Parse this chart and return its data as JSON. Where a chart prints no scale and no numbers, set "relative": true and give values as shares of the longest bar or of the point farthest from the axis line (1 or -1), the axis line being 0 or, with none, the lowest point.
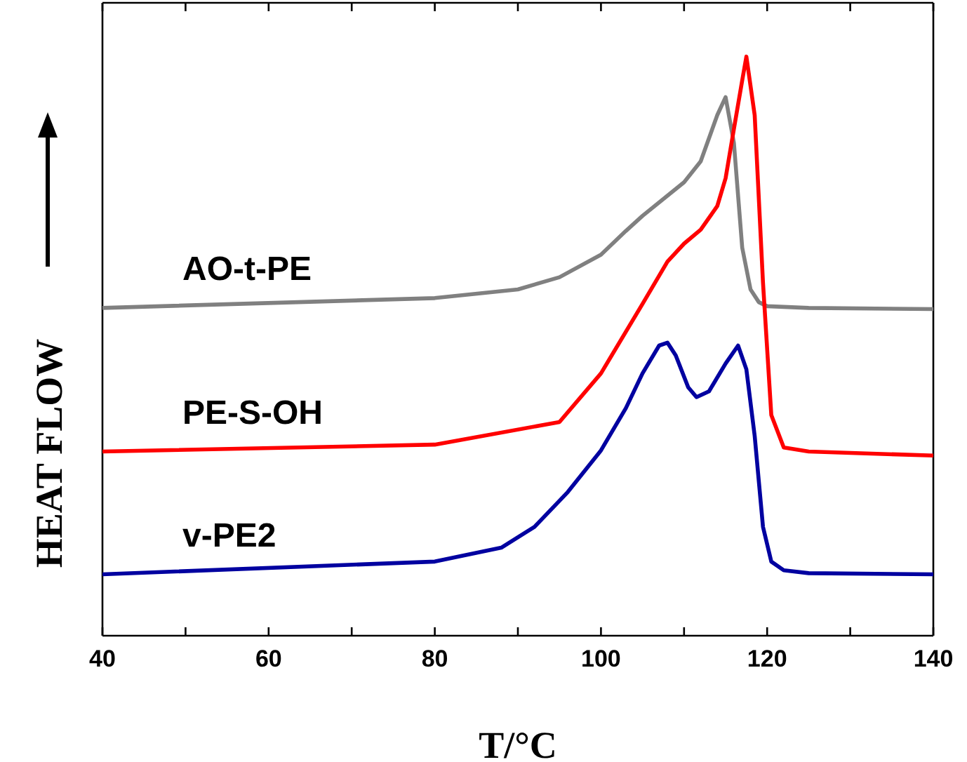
{
  "chart_data": {
    "type": "line",
    "xlabel": "T/°C",
    "ylabel": "HEAT FLOW",
    "relative": true,
    "legend": false,
    "grid": false,
    "marker": "none",
    "line_style": "solid",
    "xlim": [
      40,
      140
    ],
    "xticks": [
      40,
      {
        "value": 50,
        "label": null
      },
      60,
      {
        "value": 70,
        "label": null
      },
      80,
      {
        "value": 90,
        "label": null
      },
      100,
      {
        "value": 110,
        "label": null
      },
      120,
      {
        "value": 130,
        "label": null
      },
      140
    ],
    "series": [
      {
        "name": "AO-t-PE",
        "color": "#808080",
        "x": [
          40,
          80,
          90,
          95,
          100,
          103,
          105,
          110,
          112,
          114,
          115,
          116,
          117,
          118,
          119,
          120,
          125,
          140
        ],
        "values": [
          0.566,
          0.583,
          0.598,
          0.619,
          0.658,
          0.699,
          0.725,
          0.783,
          0.819,
          0.899,
          0.93,
          0.851,
          0.67,
          0.598,
          0.576,
          0.569,
          0.566,
          0.564
        ]
      },
      {
        "name": "PE-S-OH",
        "color": "#ff0000",
        "x": [
          40,
          80,
          95,
          100,
          105,
          108,
          110,
          112,
          114,
          115,
          116,
          117,
          117.5,
          118.5,
          119.5,
          120.5,
          122,
          125,
          140
        ],
        "values": [
          0.318,
          0.33,
          0.369,
          0.453,
          0.573,
          0.646,
          0.677,
          0.701,
          0.742,
          0.79,
          0.875,
          0.959,
          1,
          0.899,
          0.61,
          0.381,
          0.325,
          0.318,
          0.311
        ]
      },
      {
        "name": "v-PE2",
        "color": "#0000a0",
        "x": [
          40,
          80,
          88,
          92,
          96,
          100,
          103,
          105,
          107,
          108,
          109,
          110.5,
          111.5,
          113,
          115,
          116.5,
          117.5,
          118.5,
          119.5,
          120.5,
          122,
          125,
          140
        ],
        "values": [
          0.106,
          0.128,
          0.152,
          0.188,
          0.248,
          0.32,
          0.393,
          0.453,
          0.501,
          0.506,
          0.484,
          0.429,
          0.412,
          0.422,
          0.47,
          0.501,
          0.46,
          0.345,
          0.188,
          0.128,
          0.113,
          0.108,
          0.106
        ]
      }
    ]
  }
}
